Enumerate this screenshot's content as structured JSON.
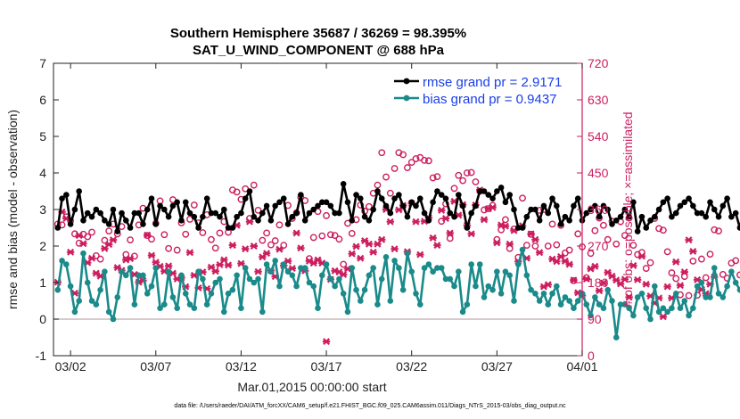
{
  "chart_data": {
    "type": "line",
    "title": "Southern Hemisphere 35687 / 36269 = 98.395%",
    "subtitle": "SAT_U_WIND_COMPONENT @ 688 hPa",
    "xlabel": "Mar.01,2015 00:00:00 start",
    "ylabel": "rmse and bias (model - observation)",
    "ylabel_right": "# of obs: o=possible; ×=assimilated",
    "footnote": "data file: /Users/raeder/DAI/ATM_forcXX/CAM6_setup/f.e21.FHIST_BGC.f09_025.CAM6assim.011/Diags_NTrS_2015-03/obs_diag_output.nc",
    "xlim": [
      0,
      31
    ],
    "ylim": [
      -1,
      7
    ],
    "ylim_right": [
      0,
      720
    ],
    "x_ticks": [
      1,
      6,
      11,
      16,
      21,
      26,
      31
    ],
    "x_tick_labels": [
      "03/02",
      "03/07",
      "03/12",
      "03/17",
      "03/22",
      "03/27",
      "04/01"
    ],
    "y_ticks": [
      -1,
      0,
      1,
      2,
      3,
      4,
      5,
      6,
      7
    ],
    "y_tick_labels": [
      "-1",
      "0",
      "1",
      "2",
      "3",
      "4",
      "5",
      "6",
      "7"
    ],
    "y_ticks_right": [
      0,
      90,
      180,
      270,
      360,
      450,
      540,
      630,
      720
    ],
    "y_tick_labels_right": [
      "0",
      "90",
      "180",
      "270",
      "360",
      "450",
      "540",
      "630",
      "720"
    ],
    "zero_line": 0,
    "x_step": 0.25,
    "colors": {
      "rmse": "#000000",
      "bias": "#1a8a8a",
      "obs": "#cc1e5e",
      "zero": "#c8b8bc",
      "legend_text": "#1a3ee8"
    },
    "series": [
      {
        "name": "rmse grand pr = 2.9171",
        "values": [
          2.5,
          3.3,
          3.4,
          2.6,
          3.0,
          3.5,
          2.7,
          2.9,
          2.8,
          3.0,
          2.9,
          2.7,
          2.6,
          3.0,
          2.4,
          2.9,
          2.7,
          2.5,
          2.9,
          2.9,
          2.6,
          3.0,
          3.3,
          2.6,
          3.1,
          3.0,
          2.8,
          3.1,
          3.2,
          2.7,
          3.2,
          2.9,
          2.8,
          2.5,
          2.8,
          3.3,
          2.9,
          2.9,
          2.8,
          3.0,
          2.5,
          2.5,
          2.8,
          2.9,
          3.3,
          3.5,
          2.8,
          2.7,
          2.9,
          3.1,
          2.7,
          3.1,
          3.2,
          3.3,
          2.6,
          2.8,
          2.9,
          3.4,
          2.7,
          2.9,
          3.0,
          3.1,
          3.2,
          3.2,
          3.1,
          2.9,
          2.9,
          3.7,
          3.2,
          2.7,
          3.4,
          3.3,
          2.8,
          2.7,
          3.0,
          3.5,
          3.3,
          3.1,
          2.9,
          3.3,
          3.4,
          3.1,
          2.8,
          3.2,
          3.1,
          3.3,
          2.9,
          2.7,
          3.2,
          3.5,
          3.4,
          3.3,
          2.9,
          2.8,
          3.4,
          3.1,
          2.5,
          2.9,
          3.1,
          3.5,
          3.5,
          3.4,
          3.3,
          3.5,
          3.6,
          3.2,
          3.4,
          3.0,
          2.5,
          2.5,
          2.8,
          3.0,
          3.0,
          2.7,
          3.1,
          2.9,
          3.3,
          3.1,
          2.6,
          2.8,
          2.7,
          3.1,
          3.3,
          2.7,
          2.9,
          3.0,
          3.1,
          2.8,
          3.1,
          3.0,
          2.6,
          2.7,
          2.8,
          3.0,
          2.8,
          3.2,
          2.4,
          2.8,
          2.5,
          2.7,
          2.8,
          3.0,
          3.2,
          3.3,
          2.8,
          2.9,
          3.1,
          3.2,
          3.3,
          3.1,
          2.9,
          2.9,
          2.8,
          3.2,
          3.0,
          2.8,
          3.1,
          3.3,
          2.8,
          2.9,
          2.5,
          3.0
        ]
      },
      {
        "name": "bias grand pr = 0.9437",
        "values": [
          0.8,
          1.6,
          1.5,
          0.9,
          0.2,
          0.5,
          1.8,
          1.0,
          0.5,
          0.4,
          0.8,
          1.3,
          0.2,
          0.0,
          0.6,
          1.3,
          1.2,
          1.4,
          0.4,
          1.2,
          1.2,
          0.7,
          0.9,
          1.4,
          0.3,
          0.4,
          1.3,
          0.6,
          0.3,
          1.2,
          0.7,
          0.4,
          0.3,
          1.3,
          1.1,
          0.4,
          0.7,
          1.0,
          1.1,
          0.2,
          0.7,
          0.8,
          1.2,
          0.3,
          1.4,
          1.1,
          1.0,
          1.1,
          0.2,
          1.5,
          1.3,
          1.6,
          0.9,
          1.5,
          1.3,
          1.2,
          0.9,
          1.4,
          1.4,
          1.0,
          0.9,
          0.3,
          1.2,
          1.5,
          1.1,
          0.9,
          1.1,
          0.7,
          0.2,
          1.4,
          0.8,
          0.5,
          0.8,
          1.2,
          1.4,
          0.4,
          1.1,
          1.7,
          0.5,
          1.6,
          1.4,
          0.8,
          1.8,
          1.3,
          0.7,
          0.4,
          1.4,
          1.5,
          1.3,
          1.4,
          1.4,
          1.1,
          1.1,
          0.9,
          1.3,
          0.2,
          0.4,
          1.5,
          0.9,
          1.5,
          0.6,
          0.9,
          0.8,
          1.3,
          0.7,
          1.3,
          1.2,
          0.5,
          1.5,
          1.9,
          1.2,
          0.8,
          0.7,
          0.5,
          0.7,
          0.4,
          0.7,
          0.9,
          0.4,
          0.6,
          0.5,
          0.3,
          0.5,
          0.7,
          0.4,
          0.1,
          0.6,
          0.4,
          0.3,
          0.8,
          0.5,
          -0.5,
          0.4,
          0.4,
          0.3,
          0.1,
          0.6,
          0.7,
          0.3,
          0.0,
          0.9,
          0.2,
          0.3,
          0.2,
          0.3,
          0.7,
          0.3,
          0.5,
          0.1,
          0.3,
          0.9,
          1.0,
          0.6,
          0.6,
          1.4,
          0.7,
          0.6,
          0.9,
          1.3,
          1.0,
          0.8,
          0.9
        ]
      },
      {
        "name": "# of obs possible",
        "values": [
          324,
          322,
          342,
          332,
          300,
          277,
          299,
          293,
          304,
          246,
          238,
          284,
          307,
          324,
          300,
          318,
          249,
          285,
          245,
          322,
          363,
          296,
          287,
          326,
          381,
          298,
          264,
          384,
          260,
          327,
          299,
          336,
          371,
          327,
          303,
          347,
          286,
          265,
          302,
          330,
          304,
          408,
          403,
          385,
          411,
          338,
          420,
          358,
          284,
          302,
          273,
          283,
          322,
          272,
          370,
          338,
          352,
          390,
          382,
          239,
          291,
          355,
          295,
          345,
          298,
          296,
          287,
          225,
          326,
          301,
          335,
          371,
          356,
          367,
          400,
          420,
          500,
          440,
          400,
          461,
          500,
          495,
          463,
          476,
          485,
          488,
          481,
          480,
          438,
          441,
          331,
          374,
          289,
          412,
          444,
          431,
          450,
          451,
          428,
          405,
          359,
          362,
          370,
          286,
          310,
          335,
          264,
          312,
          242,
          388,
          272,
          299,
          270,
          358,
          360,
          270,
          324,
          273,
          321,
          253,
          260,
          185,
          300,
          268,
          192,
          252,
          308,
          339,
          321,
          286,
          331,
          275,
          330,
          296,
          339,
          272,
          249,
          254,
          215,
          229,
          338,
          313,
          309,
          256,
          204,
          190,
          150,
          195,
          148,
          233,
          149,
          238,
          192,
          250,
          310,
          307,
          200,
          191,
          228,
          234,
          199
        ]
      },
      {
        "name": "# of obs assimilated",
        "values": [
          181,
          354,
          338,
          255,
          154,
          296,
          276,
          229,
          240,
          203,
          196,
          264,
          274,
          285,
          217,
          210,
          236,
          239,
          200,
          181,
          185,
          297,
          247,
          230,
          220,
          208,
          221,
          203,
          189,
          192,
          170,
          254,
          198,
          167,
          206,
          165,
          218,
          208,
          224,
          236,
          223,
          272,
          321,
          227,
          263,
          330,
          270,
          207,
          243,
          252,
          210,
          195,
          262,
          222,
          233,
          215,
          302,
          265,
          209,
          233,
          228,
          236,
          228,
          35,
          188,
          209,
          206,
          200,
          214,
          251,
          269,
          240,
          283,
          275,
          255,
          275,
          286,
          360,
          330,
          263,
          359,
          370,
          256,
          375,
          330,
          249,
          331,
          340,
          290,
          272,
          358,
          338,
          302,
          380,
          346,
          372,
          321,
          300,
          371,
          408,
          335,
          362,
          365,
          278,
          322,
          319,
          275,
          308,
          232,
          320,
          240,
          300,
          286,
          254,
          170,
          175,
          238,
          232,
          244,
          233,
          225,
          186,
          155,
          148,
          189,
          214,
          220,
          160,
          179,
          205,
          196,
          186,
          177,
          188,
          144,
          222,
          187,
          245,
          176,
          147,
          130,
          142,
          96,
          170,
          142,
          231,
          173,
          206,
          285,
          257,
          187,
          163,
          153,
          176,
          194
        ]
      }
    ]
  }
}
